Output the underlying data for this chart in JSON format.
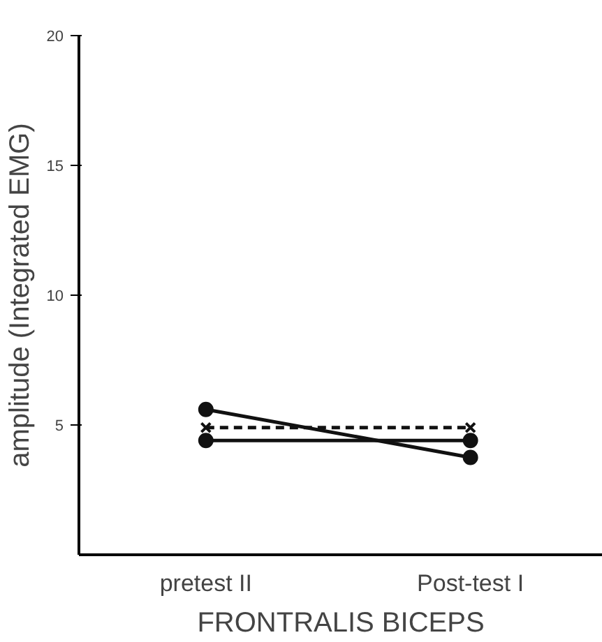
{
  "chart_data": {
    "type": "line",
    "ylabel": "amplitude (Integrated EMG)",
    "xlabel": "FRONTRALIS BICEPS",
    "categories": [
      "pretest II",
      "Post-test I"
    ],
    "ylim": [
      0,
      20
    ],
    "yticks": [
      5,
      10,
      15,
      20
    ],
    "grid": false,
    "series": [
      {
        "color": "#111111",
        "values": [
          5.6,
          3.75
        ],
        "marker": "circle",
        "line_style": "solid"
      },
      {
        "color": "#111111",
        "values": [
          4.9,
          4.9
        ],
        "marker": "cross",
        "line_style": "dashed"
      },
      {
        "color": "#111111",
        "values": [
          4.4,
          4.4
        ],
        "marker": "circle",
        "line_style": "solid"
      }
    ]
  }
}
